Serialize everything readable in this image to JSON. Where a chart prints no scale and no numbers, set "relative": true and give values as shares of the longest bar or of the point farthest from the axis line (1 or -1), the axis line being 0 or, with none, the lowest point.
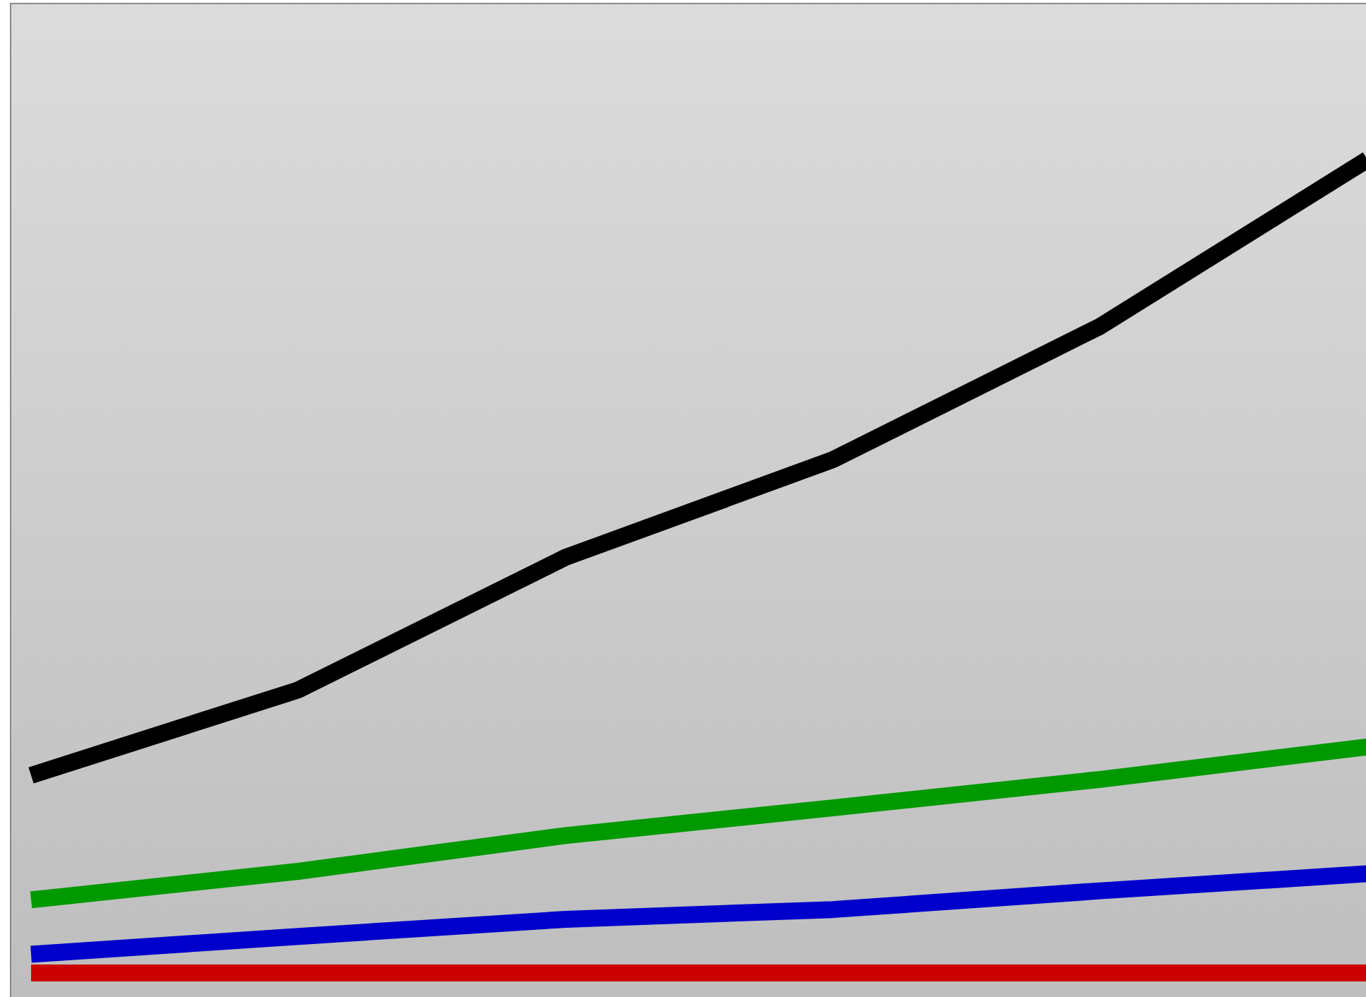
{
  "chart_data": {
    "type": "line",
    "relative": true,
    "legend": false,
    "marker": "none",
    "line_style": "solid",
    "categories": [
      null,
      null,
      null,
      null,
      null,
      null
    ],
    "series": [
      {
        "color": "#000000",
        "values": [
          0.243,
          0.348,
          0.511,
          0.631,
          0.795,
          1
        ]
      },
      {
        "color": "#009900",
        "values": [
          0.09,
          0.125,
          0.169,
          0.203,
          0.238,
          0.278
        ]
      },
      {
        "color": "#0000cc",
        "values": [
          0.023,
          0.045,
          0.066,
          0.078,
          0.101,
          0.122
        ]
      },
      {
        "color": "#cc0000",
        "values": [
          0,
          0,
          0,
          0,
          0,
          0
        ]
      }
    ]
  }
}
